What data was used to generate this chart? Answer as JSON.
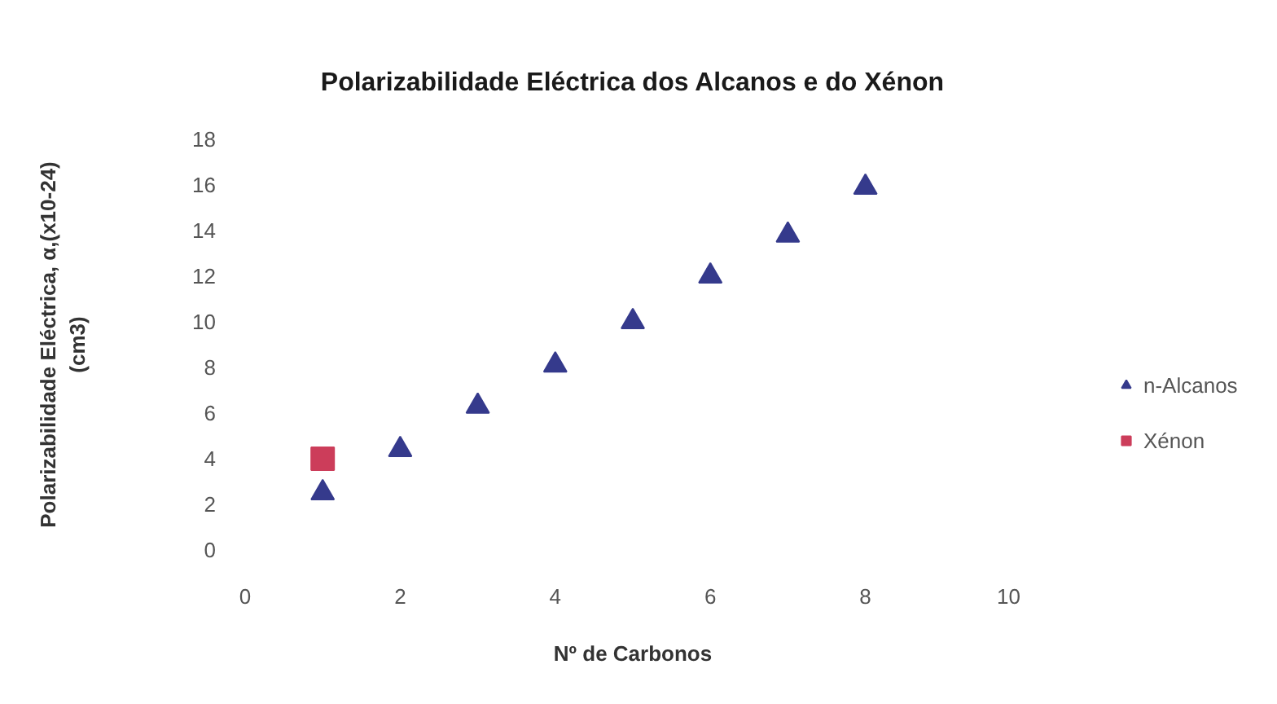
{
  "chart_data": {
    "type": "scatter",
    "title": "Polarizabilidade Eléctrica dos Alcanos e do Xénon",
    "xlabel": "Nº de Carbonos",
    "ylabel": "Polarizabilidade Eléctrica, α,(x10-24)\n(cm3)",
    "xlim": [
      0,
      10
    ],
    "ylim": [
      0,
      18
    ],
    "xticks": [
      0,
      2,
      4,
      6,
      8,
      10
    ],
    "yticks": [
      0,
      2,
      4,
      6,
      8,
      10,
      12,
      14,
      16,
      18
    ],
    "legend": "right",
    "series": [
      {
        "name": "n-Alcanos",
        "color": "#353a8c",
        "marker": "triangle",
        "x": [
          1,
          2,
          3,
          4,
          5,
          6,
          7,
          8
        ],
        "values": [
          2.5,
          4.4,
          6.3,
          8.1,
          10.0,
          12.0,
          13.8,
          15.9
        ]
      },
      {
        "name": "Xénon",
        "color": "#cc3d5a",
        "marker": "square",
        "x": [
          1
        ],
        "values": [
          4.0
        ]
      }
    ]
  }
}
